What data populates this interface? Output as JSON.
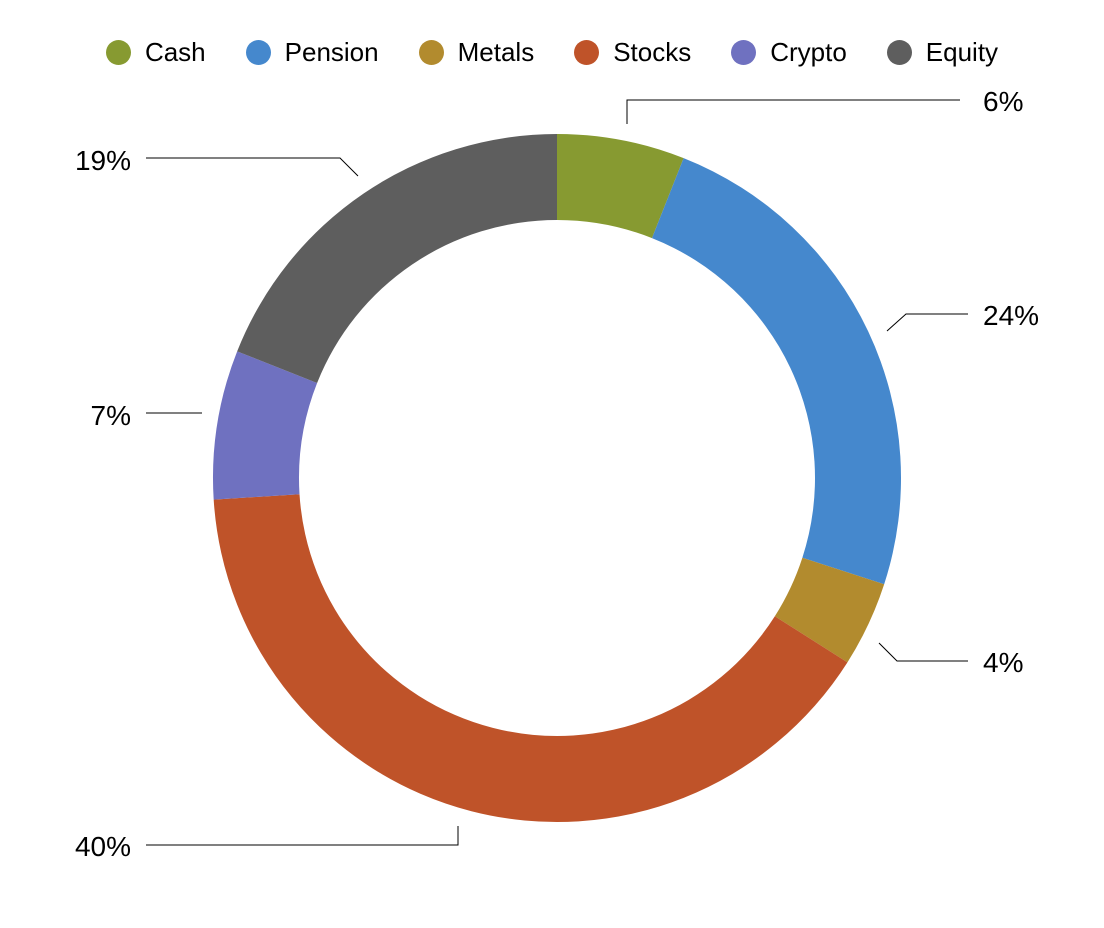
{
  "chart_data": {
    "type": "pie",
    "variant": "donut",
    "legend_position": "top",
    "categories": [
      "Cash",
      "Pension",
      "Metals",
      "Stocks",
      "Crypto",
      "Equity"
    ],
    "values": [
      6,
      24,
      4,
      40,
      7,
      19
    ],
    "value_labels": [
      "6%",
      "24%",
      "4%",
      "40%",
      "7%",
      "19%"
    ],
    "colors": [
      "#879a31",
      "#4588cd",
      "#b28b2e",
      "#bf5329",
      "#6f71c0",
      "#5e5e5e"
    ]
  }
}
